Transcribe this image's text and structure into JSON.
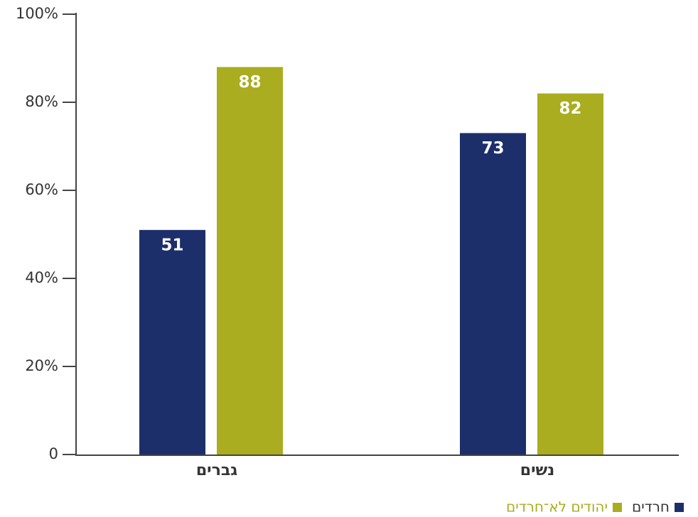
{
  "chart_data": {
    "type": "bar",
    "categories": [
      "גברים",
      "נשים"
    ],
    "series": [
      {
        "name": "חרדים",
        "color": "#1c2f6b",
        "values": [
          51,
          73
        ]
      },
      {
        "name": "יהודים לא־חרדים",
        "color": "#a9ad1f",
        "values": [
          88,
          82
        ]
      }
    ],
    "ylim": [
      0,
      100
    ],
    "yticks": [
      0,
      {
        "value": 20,
        "label": "20%"
      },
      {
        "value": 40,
        "label": "40%"
      },
      {
        "value": 60,
        "label": "60%"
      },
      {
        "value": 80,
        "label": "80%"
      },
      {
        "value": 100,
        "label": "100%"
      }
    ],
    "grid": false
  }
}
